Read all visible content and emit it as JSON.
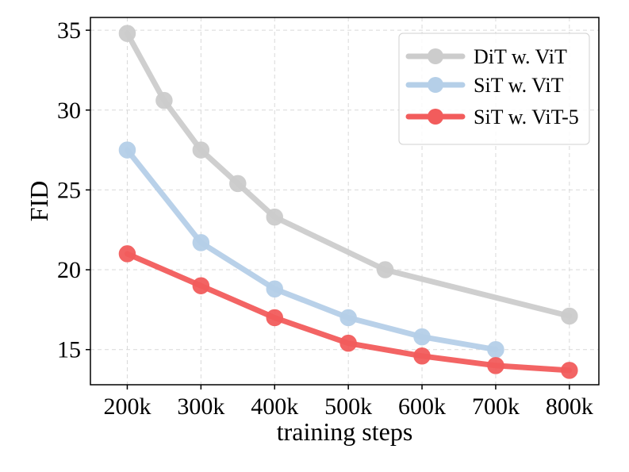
{
  "chart_data": {
    "type": "line",
    "title": "",
    "xlabel": "training steps",
    "ylabel": "FID",
    "x": [
      200,
      250,
      300,
      350,
      400,
      500,
      550,
      600,
      700,
      800
    ],
    "xticks": [
      200,
      300,
      400,
      500,
      600,
      700,
      800
    ],
    "xtick_labels": [
      "200k",
      "300k",
      "400k",
      "500k",
      "600k",
      "700k",
      "800k"
    ],
    "xlim": [
      150,
      840
    ],
    "yticks": [
      15,
      20,
      25,
      30,
      35
    ],
    "ytick_labels": [
      "15",
      "20",
      "25",
      "30",
      "35"
    ],
    "ylim": [
      12.8,
      35.8
    ],
    "grid": true,
    "legend_position": "top-right",
    "series": [
      {
        "name": "DiT w. ViT",
        "color": "#cccccc",
        "x": [
          200,
          250,
          300,
          350,
          400,
          550,
          800
        ],
        "y": [
          34.8,
          30.6,
          27.5,
          25.4,
          23.3,
          20.0,
          17.1
        ]
      },
      {
        "name": "SiT w. ViT",
        "color": "#b5cfe8",
        "x": [
          200,
          300,
          400,
          500,
          600,
          700
        ],
        "y": [
          27.5,
          21.7,
          18.8,
          17.0,
          15.8,
          15.0
        ]
      },
      {
        "name": "SiT w. ViT-5",
        "color": "#f25c5c",
        "x": [
          200,
          300,
          400,
          500,
          600,
          700,
          800
        ],
        "y": [
          21.0,
          19.0,
          17.0,
          15.4,
          14.6,
          14.0,
          13.7
        ]
      }
    ]
  }
}
